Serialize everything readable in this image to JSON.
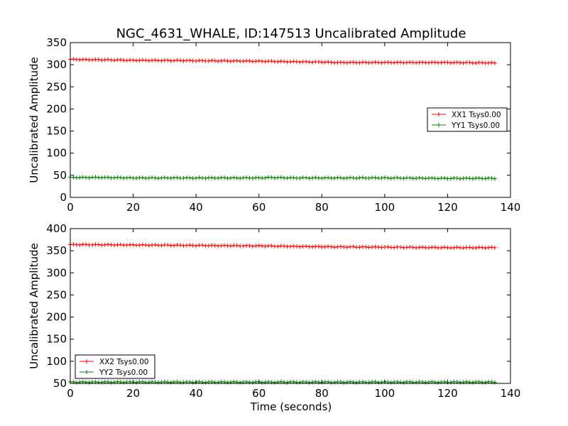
{
  "figure": {
    "title": "NGC_4631_WHALE, ID:147513 Uncalibrated Amplitude",
    "xlabel": "Time (seconds)"
  },
  "chart_data": [
    {
      "type": "line",
      "ylabel": "Uncalibrated Amplitude",
      "xlabel": "",
      "xlim": [
        0,
        140
      ],
      "ylim": [
        0,
        350
      ],
      "xticks": [
        0,
        20,
        40,
        60,
        80,
        100,
        120,
        140
      ],
      "yticks": [
        0,
        50,
        100,
        150,
        200,
        250,
        300,
        350
      ],
      "legend_position": "center-right",
      "series": [
        {
          "name": "XX1 Tsys0.00",
          "color": "#ff0000",
          "x_start": 0,
          "x_end": 135,
          "x_step": 1,
          "key_x": [
            0,
            10,
            20,
            40,
            60,
            68,
            80,
            85,
            100,
            120,
            135
          ],
          "key_y": [
            312,
            311,
            310,
            309,
            308,
            307,
            306,
            305,
            305,
            305,
            304
          ]
        },
        {
          "name": "YY1 Tsys0.00",
          "color": "#008000",
          "x_start": 0,
          "x_end": 135,
          "x_step": 1,
          "key_x": [
            0,
            10,
            20,
            40,
            60,
            64,
            70,
            80,
            100,
            120,
            135
          ],
          "key_y": [
            45,
            45,
            44,
            44,
            44,
            45,
            44,
            44,
            44,
            43,
            43
          ]
        }
      ]
    },
    {
      "type": "line",
      "ylabel": "Uncalibrated Amplitude",
      "xlabel": "Time (seconds)",
      "xlim": [
        0,
        140
      ],
      "ylim": [
        50,
        400
      ],
      "xticks": [
        0,
        20,
        40,
        60,
        80,
        100,
        120,
        140
      ],
      "yticks": [
        50,
        100,
        150,
        200,
        250,
        300,
        350,
        400
      ],
      "legend_position": "bottom-left",
      "series": [
        {
          "name": "XX2 Tsys0.00",
          "color": "#ff0000",
          "x_start": 0,
          "x_end": 135,
          "x_step": 1,
          "key_x": [
            0,
            20,
            40,
            60,
            70,
            80,
            100,
            120,
            135
          ],
          "key_y": [
            364,
            363,
            362,
            361,
            360,
            359,
            358,
            357,
            357
          ]
        },
        {
          "name": "YY2 Tsys0.00",
          "color": "#008000",
          "x_start": 0,
          "x_end": 135,
          "x_step": 1,
          "key_x": [
            0,
            135
          ],
          "key_y": [
            53,
            53
          ]
        }
      ]
    }
  ]
}
